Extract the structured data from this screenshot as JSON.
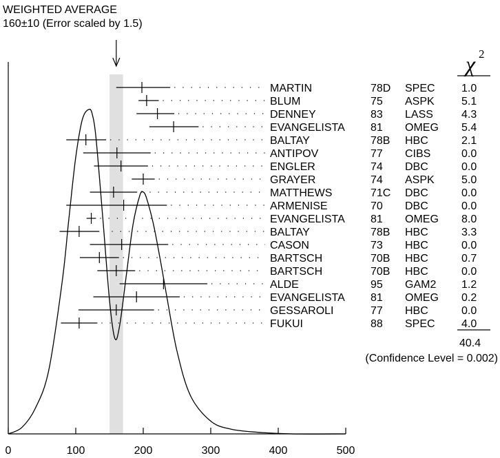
{
  "header": {
    "title": "WEIGHTED AVERAGE",
    "subtitle": "160±10 (Error scaled by 1.5)"
  },
  "chi2_label": "χ",
  "chi2_superscript": "2",
  "total_chi2": "40.4",
  "confidence_level": "(Confidence Level = 0.002)",
  "chart_data": {
    "type": "scatter",
    "title": "WEIGHTED AVERAGE",
    "subtitle": "160±10 (Error scaled by 1.5)",
    "xlabel": "",
    "ylabel": "",
    "xlim": [
      0,
      500
    ],
    "x_ticks": [
      "0",
      "100",
      "200",
      "300",
      "400",
      "500"
    ],
    "x_tick_values": [
      0,
      100,
      200,
      300,
      400,
      500
    ],
    "weighted_average": {
      "value": 160,
      "error": 10
    },
    "measurements": [
      {
        "name": "MARTIN",
        "year": "78D",
        "tech": "SPEC",
        "chi2": "1.0",
        "value": 198,
        "err_low": 38,
        "err_high": 42
      },
      {
        "name": "BLUM",
        "year": "75",
        "tech": "ASPK",
        "chi2": "5.1",
        "value": 205,
        "err_low": 12,
        "err_high": 18
      },
      {
        "name": "DENNEY",
        "year": "83",
        "tech": "LASS",
        "chi2": "4.3",
        "value": 221,
        "err_low": 31,
        "err_high": 25
      },
      {
        "name": "EVANGELISTA",
        "year": "81",
        "tech": "OMEG",
        "chi2": "5.4",
        "value": 245,
        "err_low": 36,
        "err_high": 37
      },
      {
        "name": "BALTAY",
        "year": "78B",
        "tech": "HBC",
        "chi2": "2.1",
        "value": 115,
        "err_low": 29,
        "err_high": 30
      },
      {
        "name": "ANTIPOV",
        "year": "77",
        "tech": "CIBS",
        "chi2": "0.0",
        "value": 161,
        "err_low": 50,
        "err_high": 50
      },
      {
        "name": "ENGLER",
        "year": "74",
        "tech": "DBC",
        "chi2": "0.0",
        "value": 167,
        "err_low": 40,
        "err_high": 40
      },
      {
        "name": "GRAYER",
        "year": "74",
        "tech": "ASPK",
        "chi2": "5.0",
        "value": 200,
        "err_low": 17,
        "err_high": 17
      },
      {
        "name": "MATTHEWS",
        "year": "71C",
        "tech": "DBC",
        "chi2": "0.0",
        "value": 156,
        "err_low": 35,
        "err_high": 35
      },
      {
        "name": "ARMENISE",
        "year": "70",
        "tech": "DBC",
        "chi2": "0.0",
        "value": 171,
        "err_low": 85,
        "err_high": 64
      },
      {
        "name": "EVANGELISTA",
        "year": "81",
        "tech": "OMEG",
        "chi2": "8.0",
        "value": 123,
        "err_low": 7,
        "err_high": 7
      },
      {
        "name": "BALTAY",
        "year": "78B",
        "tech": "HBC",
        "chi2": "3.3",
        "value": 105,
        "err_low": 29,
        "err_high": 30
      },
      {
        "name": "CASON",
        "year": "73",
        "tech": "HBC",
        "chi2": "0.0",
        "value": 168,
        "err_low": 47,
        "err_high": 69
      },
      {
        "name": "BARTSCH",
        "year": "70B",
        "tech": "HBC",
        "chi2": "0.7",
        "value": 135,
        "err_low": 29,
        "err_high": 29
      },
      {
        "name": "BARTSCH",
        "year": "70B",
        "tech": "HBC",
        "chi2": "0.0",
        "value": 160,
        "err_low": 28,
        "err_high": 28
      },
      {
        "name": "ALDE",
        "year": "95",
        "tech": "GAM2",
        "chi2": "1.2",
        "value": 230,
        "err_low": 65,
        "err_high": 65
      },
      {
        "name": "EVANGELISTA",
        "year": "81",
        "tech": "OMEG",
        "chi2": "0.2",
        "value": 190,
        "err_low": 64,
        "err_high": 64
      },
      {
        "name": "GESSAROLI",
        "year": "77",
        "tech": "HBC",
        "chi2": "0.0",
        "value": 160,
        "err_low": 56,
        "err_high": 56
      },
      {
        "name": "FUKUI",
        "year": "88",
        "tech": "SPEC",
        "chi2": "4.0",
        "value": 105,
        "err_low": 27,
        "err_high": 27
      }
    ],
    "ideogram": {
      "x": [
        0,
        20,
        40,
        60,
        80,
        90,
        100,
        110,
        120,
        125,
        130,
        140,
        150,
        158,
        165,
        175,
        185,
        195,
        200,
        205,
        215,
        225,
        235,
        250,
        270,
        300,
        330,
        370,
        420,
        500
      ],
      "y": [
        0.0,
        0.02,
        0.08,
        0.2,
        0.48,
        0.68,
        0.87,
        0.99,
        1.02,
        1.0,
        0.93,
        0.68,
        0.42,
        0.3,
        0.34,
        0.5,
        0.66,
        0.75,
        0.76,
        0.74,
        0.66,
        0.55,
        0.43,
        0.26,
        0.12,
        0.04,
        0.015,
        0.005,
        0.0,
        0.0
      ]
    }
  }
}
